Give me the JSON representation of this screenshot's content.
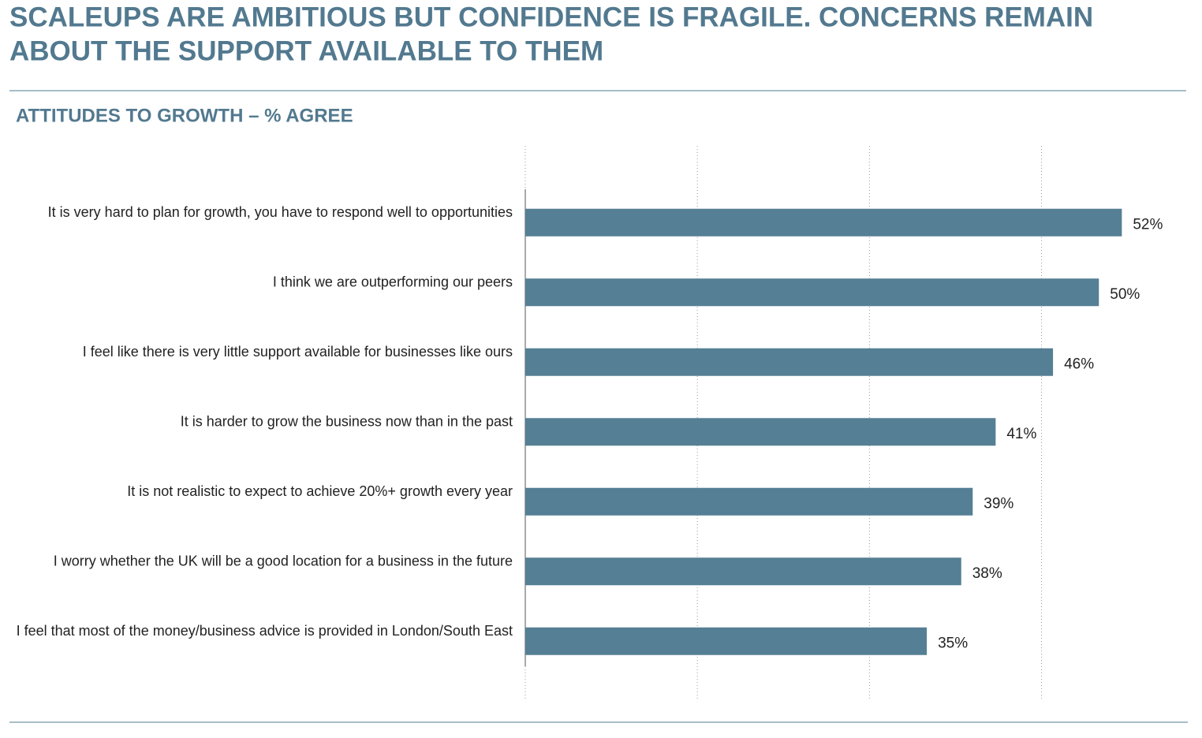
{
  "chart_data": {
    "type": "hbar",
    "title": [
      "SCALEUPS ARE AMBITIOUS BUT CONFIDENCE IS FRAGILE. CONCERNS REMAIN",
      "ABOUT THE SUPPORT AVAILABLE TO THEM"
    ],
    "subtitle": "ATTITUDES TO GROWTH – % AGREE",
    "categories": [
      "It is very hard to plan for growth, you have to respond well to opportunities",
      "I think we are outperforming our peers",
      "I feel like there is very little support available for businesses like ours",
      "It is harder to grow the business now than in the past",
      "It is not realistic to expect to achieve 20%+ growth every year",
      "I worry whether the UK will be a good location for a business in the future",
      "I feel that most of the money/business advice is provided in London/South East"
    ],
    "values": [
      52,
      50,
      46,
      41,
      39,
      38,
      35
    ],
    "value_labels": [
      "52%",
      "50%",
      "46%",
      "41%",
      "39%",
      "38%",
      "35%"
    ],
    "color": "#557f94",
    "xlim": [
      0,
      55
    ],
    "xticks": [
      0,
      15,
      30,
      45
    ],
    "grid": true
  }
}
